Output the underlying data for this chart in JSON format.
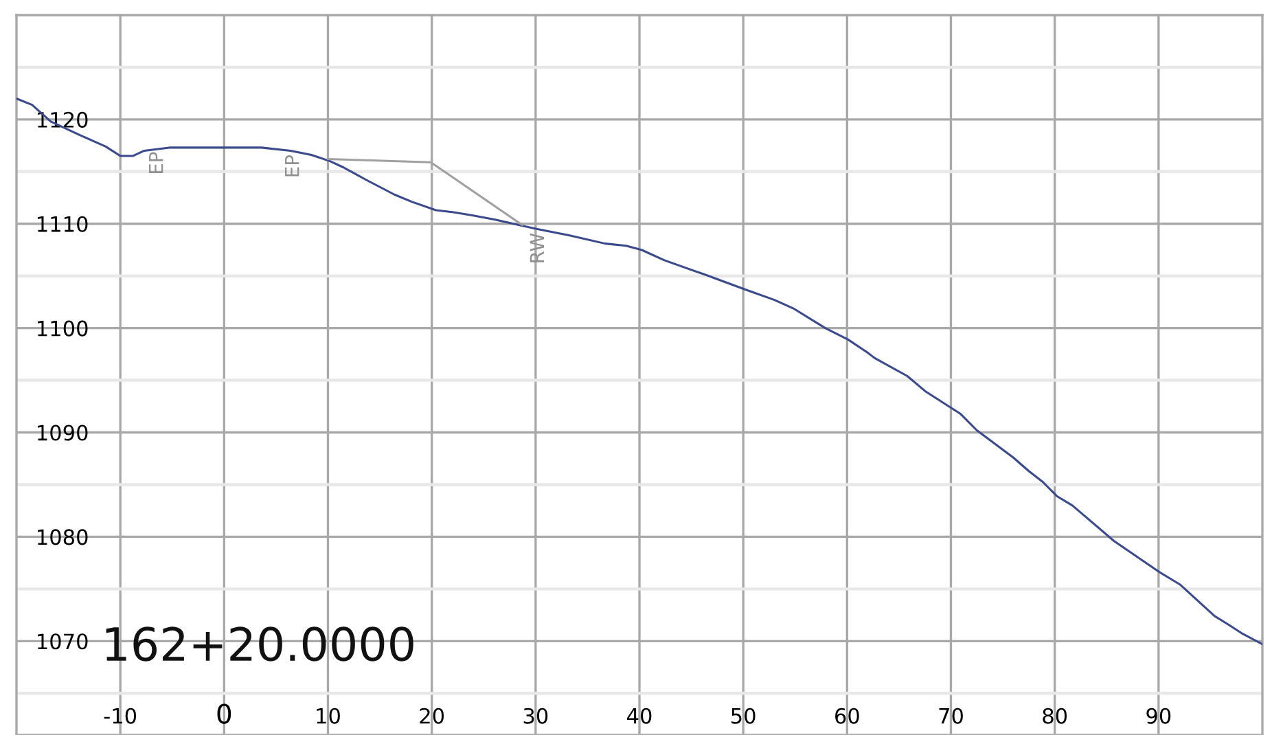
{
  "chart_data": {
    "type": "line",
    "xlim": [
      -20,
      100
    ],
    "ylim": [
      1061,
      1130
    ],
    "xticks": [
      -10,
      0,
      10,
      20,
      30,
      40,
      50,
      60,
      70,
      80,
      90
    ],
    "yticks": [
      {
        "value": 1065,
        "label": null
      },
      1070,
      {
        "value": 1075,
        "label": null
      },
      1080,
      {
        "value": 1085,
        "label": null
      },
      1090,
      {
        "value": 1095,
        "label": null
      },
      1100,
      {
        "value": 1105,
        "label": null
      },
      1110,
      {
        "value": 1115,
        "label": null
      },
      1120,
      {
        "value": 1125,
        "label": null
      }
    ],
    "grid": true,
    "legend": false,
    "marker": "none",
    "line_style": "solid",
    "series": [
      {
        "color": "#3b4a8c",
        "x": [
          -20,
          -18.5,
          -16.7,
          -13.9,
          -11.4,
          -10.0,
          -8.8,
          -7.7,
          -5.3,
          3.6,
          6.4,
          8.4,
          10.2,
          11.5,
          13.7,
          16.4,
          18.1,
          20.4,
          22.1,
          23.9,
          26.1,
          28.3,
          30.1,
          33.2,
          36.7,
          38.7,
          40.2,
          42.4,
          46.4,
          50.2,
          53.0,
          54.8,
          57.9,
          60.1,
          61.9,
          62.7,
          65.8,
          67.6,
          70.9,
          72.5,
          76.0,
          77.5,
          78.8,
          80.2,
          81.7,
          83.0,
          85.7,
          90.1,
          92.1,
          95.4,
          96.7,
          98.1,
          100
        ],
        "values": [
          1122.0,
          1121.4,
          1119.8,
          1118.5,
          1117.4,
          1116.5,
          1116.5,
          1117.0,
          1117.3,
          1117.3,
          1117.0,
          1116.6,
          1116.0,
          1115.4,
          1114.2,
          1112.8,
          1112.1,
          1111.3,
          1111.1,
          1110.8,
          1110.4,
          1109.9,
          1109.5,
          1108.9,
          1108.1,
          1107.9,
          1107.5,
          1106.5,
          1105.1,
          1103.7,
          1102.7,
          1101.9,
          1100.0,
          1098.9,
          1097.7,
          1097.1,
          1095.4,
          1093.9,
          1091.8,
          1090.2,
          1087.6,
          1086.3,
          1085.3,
          1083.9,
          1083.0,
          1081.9,
          1079.6,
          1076.6,
          1075.4,
          1072.4,
          1071.6,
          1070.7,
          1069.7
        ]
      },
      {
        "color": "#a0a0a0",
        "x": [
          10.0,
          19.9,
          28.7
        ],
        "values": [
          1116.2,
          1115.9,
          1109.9
        ]
      }
    ],
    "annotations": [
      {
        "text": "EP",
        "x": -6.4,
        "y": 1117.3
      },
      {
        "text": "EP",
        "x": 6.7,
        "y": 1117.0
      },
      {
        "text": "RW",
        "x": 30.3,
        "y": 1109.5
      },
      "162+20.0000"
    ]
  }
}
